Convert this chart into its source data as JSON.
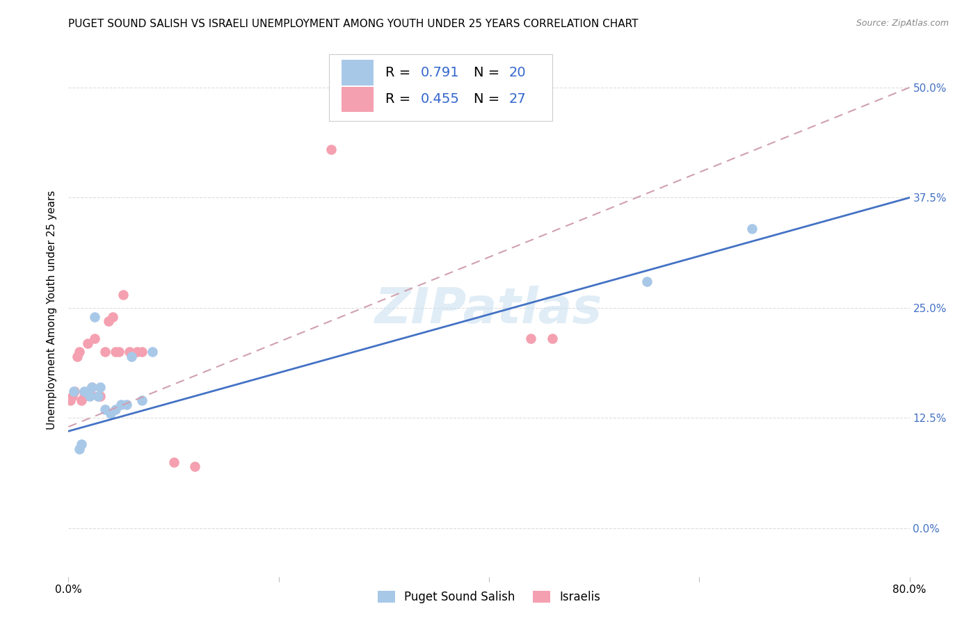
{
  "title": "PUGET SOUND SALISH VS ISRAELI UNEMPLOYMENT AMONG YOUTH UNDER 25 YEARS CORRELATION CHART",
  "source": "Source: ZipAtlas.com",
  "ylabel": "Unemployment Among Youth under 25 years",
  "xlim": [
    0.0,
    0.8
  ],
  "ylim": [
    -0.055,
    0.55
  ],
  "yticks": [
    0.0,
    0.125,
    0.25,
    0.375,
    0.5
  ],
  "ytick_labels": [
    "0.0%",
    "12.5%",
    "25.0%",
    "37.5%",
    "50.0%"
  ],
  "xticks": [
    0.0,
    0.2,
    0.4,
    0.6,
    0.8
  ],
  "xtick_labels": [
    "0.0%",
    "",
    "",
    "",
    "80.0%"
  ],
  "background_color": "#ffffff",
  "grid_color": "#dddddd",
  "watermark": "ZIPatlas",
  "series1_label": "Puget Sound Salish",
  "series1_R": "0.791",
  "series1_N": "20",
  "series1_color": "#a8c8e8",
  "series1_x": [
    0.005,
    0.01,
    0.012,
    0.015,
    0.018,
    0.02,
    0.022,
    0.025,
    0.028,
    0.03,
    0.035,
    0.04,
    0.045,
    0.05,
    0.055,
    0.06,
    0.07,
    0.08,
    0.55,
    0.65
  ],
  "series1_y": [
    0.155,
    0.09,
    0.095,
    0.155,
    0.155,
    0.15,
    0.16,
    0.24,
    0.15,
    0.16,
    0.135,
    0.13,
    0.135,
    0.14,
    0.14,
    0.195,
    0.145,
    0.2,
    0.28,
    0.34
  ],
  "series2_label": "Israelis",
  "series2_R": "0.455",
  "series2_N": "27",
  "series2_color": "#f4a0b0",
  "series2_x": [
    0.002,
    0.004,
    0.006,
    0.008,
    0.01,
    0.012,
    0.015,
    0.018,
    0.02,
    0.022,
    0.025,
    0.028,
    0.03,
    0.035,
    0.038,
    0.042,
    0.045,
    0.048,
    0.052,
    0.058,
    0.065,
    0.07,
    0.1,
    0.12,
    0.44,
    0.46,
    0.25
  ],
  "series2_y": [
    0.145,
    0.15,
    0.155,
    0.195,
    0.2,
    0.145,
    0.15,
    0.21,
    0.155,
    0.16,
    0.215,
    0.15,
    0.15,
    0.2,
    0.235,
    0.24,
    0.2,
    0.2,
    0.265,
    0.2,
    0.2,
    0.2,
    0.075,
    0.07,
    0.215,
    0.215,
    0.43
  ],
  "series1_line_color": "#4472c4",
  "series2_line_color": "#d0a0b0",
  "trendline1_x": [
    0.0,
    0.8
  ],
  "trendline1_y": [
    0.11,
    0.375
  ],
  "trendline2_x": [
    0.0,
    0.8
  ],
  "trendline2_y": [
    0.115,
    0.5
  ],
  "legend_fontsize": 14,
  "title_fontsize": 11,
  "axis_label_fontsize": 11,
  "tick_fontsize": 11,
  "right_ytick_color": "#4472c4"
}
